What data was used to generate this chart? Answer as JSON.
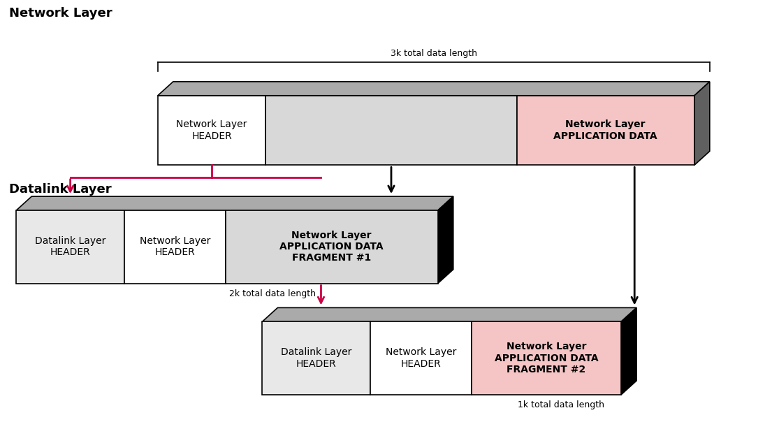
{
  "bg_color": "#ffffff",
  "title_network": "Network Layer",
  "title_datalink": "Datalink Layer",
  "label_3k": "3k total data length",
  "label_2k": "2k total data length",
  "label_1k": "1k total data length",
  "color_white": "#ffffff",
  "color_light_gray": "#d8d8d8",
  "color_medium_gray": "#aaaaaa",
  "color_darker_gray": "#606060",
  "color_black": "#000000",
  "color_pink": "#f5c5c5",
  "color_very_light_gray": "#e8e8e8",
  "color_arrow_pink": "#cc0044",
  "color_arrow_black": "#000000",
  "font_size_title": 13,
  "font_size_label": 9,
  "font_size_box": 10
}
